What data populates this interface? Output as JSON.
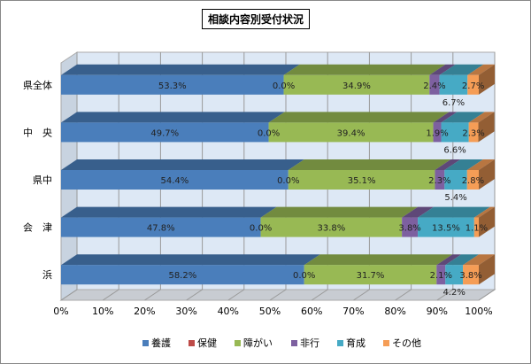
{
  "chart_data": {
    "type": "bar",
    "orientation": "horizontal",
    "stacked": "percent",
    "title": "相談内容別受付状況",
    "categories": [
      "県全体",
      "中　央",
      "県中",
      "会　津",
      "浜"
    ],
    "series": [
      {
        "name": "養護",
        "color": "#4a7ebb",
        "values": [
          53.3,
          49.7,
          54.4,
          47.8,
          58.2
        ]
      },
      {
        "name": "保健",
        "color": "#be4b48",
        "values": [
          0.0,
          0.0,
          0.0,
          0.0,
          0.0
        ]
      },
      {
        "name": "障がい",
        "color": "#98b954",
        "values": [
          34.9,
          39.4,
          35.1,
          33.8,
          31.7
        ]
      },
      {
        "name": "非行",
        "color": "#7d60a0",
        "values": [
          2.4,
          1.9,
          2.3,
          3.8,
          2.1
        ]
      },
      {
        "name": "育成",
        "color": "#46aac5",
        "values": [
          6.7,
          6.6,
          5.4,
          13.5,
          4.2
        ]
      },
      {
        "name": "その他",
        "color": "#f59d56",
        "values": [
          2.7,
          2.3,
          2.8,
          1.1,
          3.8
        ]
      }
    ],
    "xticks": [
      "0%",
      "10%",
      "20%",
      "30%",
      "40%",
      "50%",
      "60%",
      "70%",
      "80%",
      "90%",
      "100%"
    ],
    "xlim": [
      0,
      100
    ],
    "grid": true,
    "legend": "bottom"
  }
}
